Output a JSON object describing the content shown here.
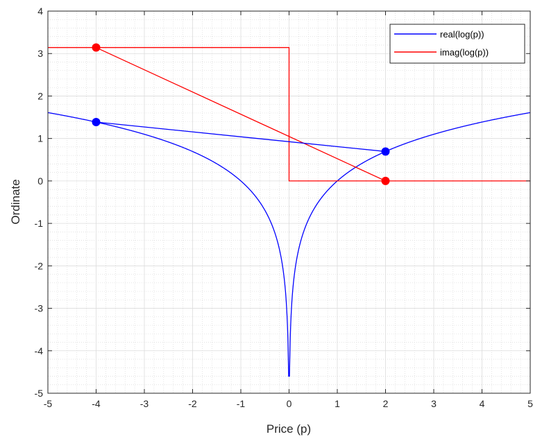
{
  "chart_data": {
    "type": "line",
    "title": "",
    "xlabel": "Price (p)",
    "ylabel": "Ordinate",
    "xlim": [
      -5,
      5
    ],
    "ylim": [
      -5,
      4
    ],
    "xticks": [
      -5,
      -4,
      -3,
      -2,
      -1,
      0,
      1,
      2,
      3,
      4,
      5
    ],
    "yticks": [
      -5,
      -4,
      -3,
      -2,
      -1,
      0,
      1,
      2,
      3,
      4
    ],
    "xtick_labels": [
      "-5",
      "-4",
      "-3",
      "-2",
      "-1",
      "0",
      "1",
      "2",
      "3",
      "4",
      "5"
    ],
    "ytick_labels": [
      "-5",
      "-4",
      "-3",
      "-2",
      "-1",
      "0",
      "1",
      "2",
      "3",
      "4"
    ],
    "grid": true,
    "minor_grid": true,
    "legend_position": "top-right",
    "series": [
      {
        "name": "real(log(p))",
        "color": "#0000ff",
        "function": "ln(abs(p))",
        "y_min_shown": -4.6
      },
      {
        "name": "imag(log(p))",
        "color": "#ff0000",
        "x": [
          -5,
          0,
          0,
          5
        ],
        "y": [
          3.1416,
          3.1416,
          0,
          0
        ]
      }
    ],
    "chords": [
      {
        "color": "#ff0000",
        "x": [
          -4,
          2
        ],
        "y": [
          3.1416,
          0
        ]
      },
      {
        "color": "#0000ff",
        "x": [
          -4,
          2
        ],
        "y": [
          1.3863,
          0.6931
        ]
      }
    ],
    "markers": [
      {
        "color": "#ff0000",
        "x": -4,
        "y": 3.1416
      },
      {
        "color": "#ff0000",
        "x": 2,
        "y": 0
      },
      {
        "color": "#0000ff",
        "x": -4,
        "y": 1.3863
      },
      {
        "color": "#0000ff",
        "x": 2,
        "y": 0.6931
      }
    ]
  }
}
